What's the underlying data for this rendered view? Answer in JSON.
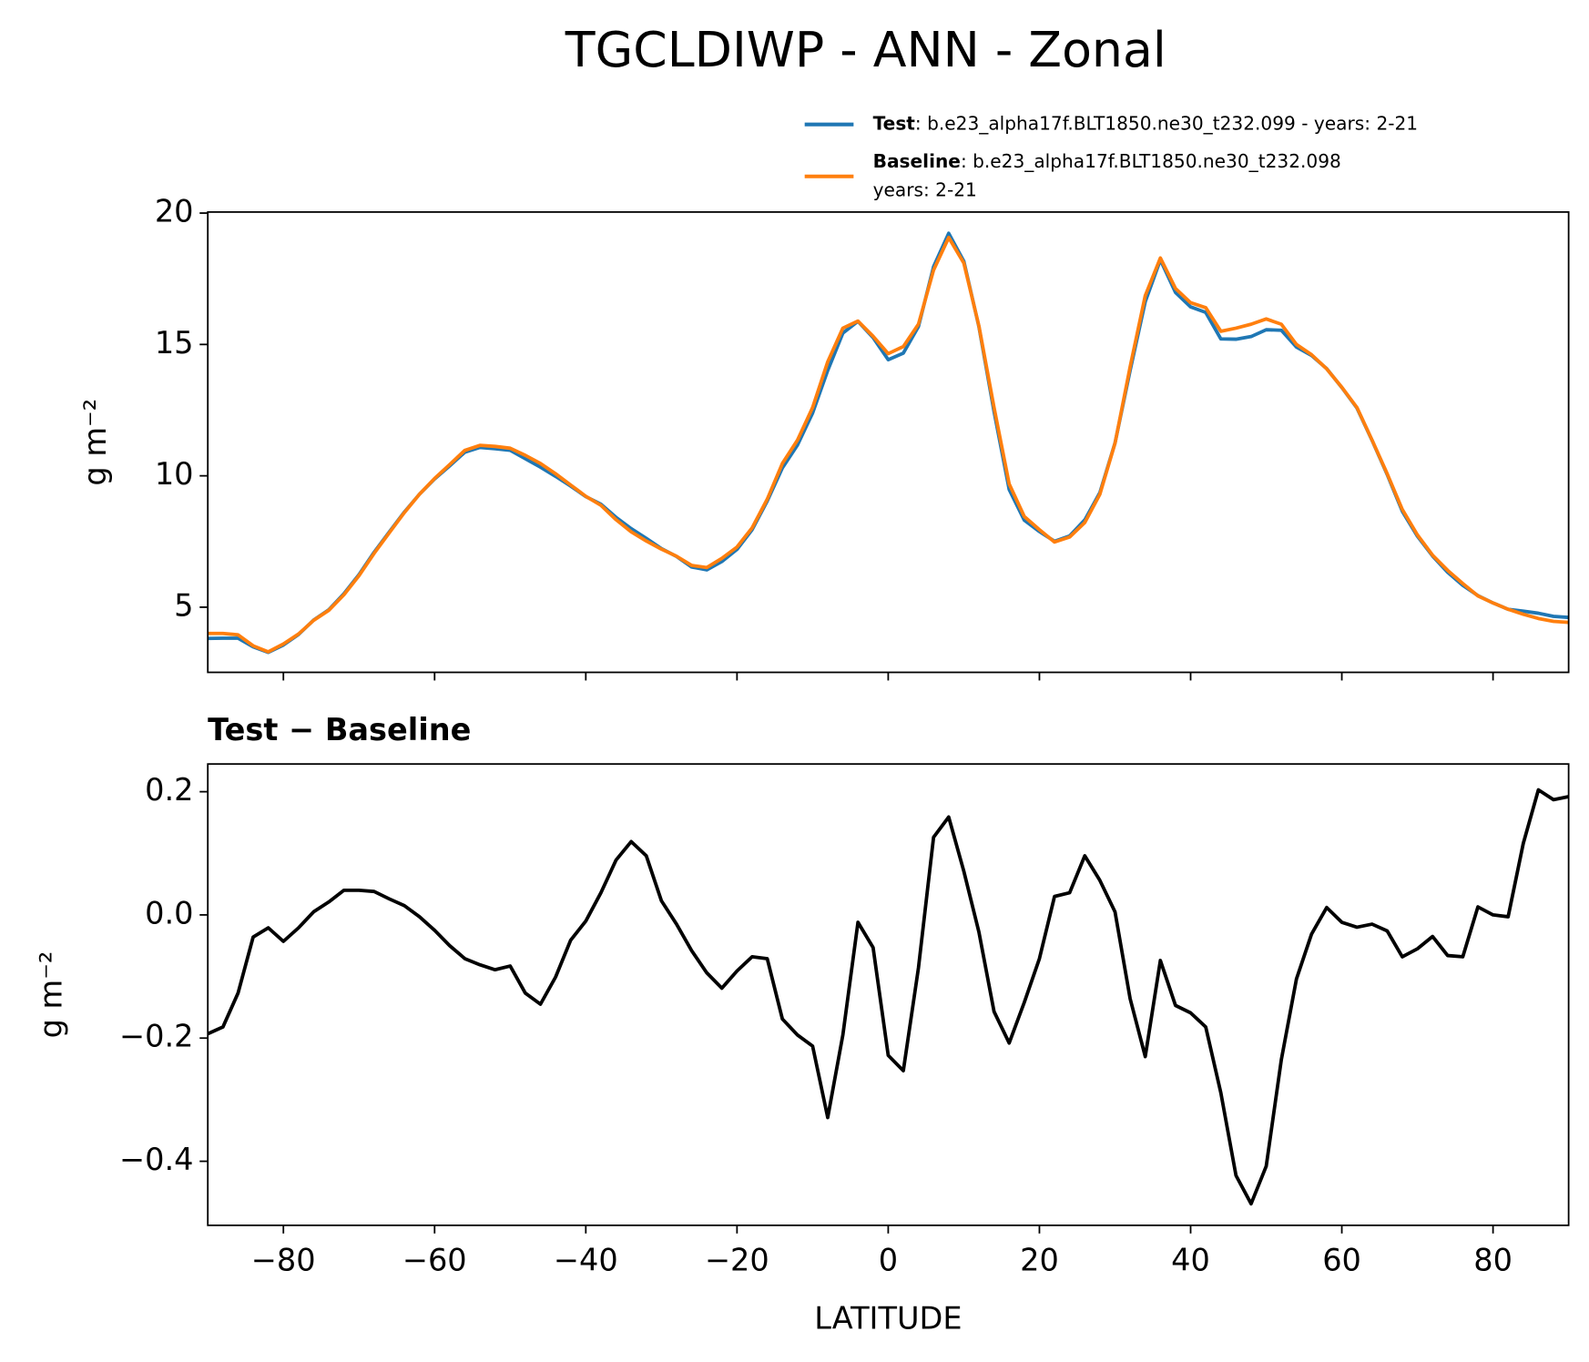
{
  "title": "TGCLDIWP - ANN - Zonal",
  "chart_data": [
    {
      "type": "line",
      "ylabel": "g m⁻²",
      "x": [
        -90,
        -88,
        -86,
        -84,
        -82,
        -80,
        -78,
        -76,
        -74,
        -72,
        -70,
        -68,
        -66,
        -64,
        -62,
        -60,
        -58,
        -56,
        -54,
        -52,
        -50,
        -48,
        -46,
        -44,
        -42,
        -40,
        -38,
        -36,
        -34,
        -32,
        -30,
        -28,
        -26,
        -24,
        -22,
        -20,
        -18,
        -16,
        -14,
        -12,
        -10,
        -8,
        -6,
        -4,
        -2,
        0,
        2,
        4,
        6,
        8,
        10,
        12,
        14,
        16,
        18,
        20,
        22,
        24,
        26,
        28,
        30,
        32,
        34,
        36,
        38,
        40,
        42,
        44,
        46,
        48,
        50,
        52,
        54,
        56,
        58,
        60,
        62,
        64,
        66,
        68,
        70,
        72,
        74,
        76,
        78,
        80,
        82,
        84,
        86,
        88,
        90
      ],
      "series": [
        {
          "name": "Test",
          "legend_text": [
            ": b.e23_alpha17f.BLT1850.ne30_t232.099 - years: 2-21"
          ],
          "color": "#1f77b4",
          "values": [
            3.81,
            3.82,
            3.82,
            3.49,
            3.28,
            3.56,
            3.96,
            4.51,
            4.9,
            5.51,
            6.24,
            7.09,
            7.86,
            8.62,
            9.3,
            9.88,
            10.38,
            10.9,
            11.08,
            11.03,
            10.97,
            10.65,
            10.33,
            9.98,
            9.61,
            9.21,
            8.92,
            8.42,
            7.99,
            7.62,
            7.23,
            6.93,
            6.53,
            6.42,
            6.74,
            7.2,
            7.95,
            9.04,
            10.3,
            11.17,
            12.39,
            14.01,
            15.43,
            15.88,
            15.26,
            14.42,
            14.67,
            15.68,
            17.96,
            19.23,
            18.17,
            15.67,
            12.44,
            9.48,
            8.31,
            7.88,
            7.51,
            7.71,
            8.32,
            9.36,
            11.25,
            14.01,
            16.63,
            18.22,
            16.98,
            16.43,
            16.22,
            15.21,
            15.2,
            15.3,
            15.56,
            15.54,
            14.9,
            14.58,
            14.08,
            13.36,
            12.58,
            11.35,
            10.05,
            8.65,
            7.7,
            6.95,
            6.33,
            5.83,
            5.44,
            5.16,
            4.92,
            4.85,
            4.77,
            4.65,
            4.61
          ]
        },
        {
          "name": "Baseline",
          "legend_text": [
            ": b.e23_alpha17f.BLT1850.ne30_t232.098",
            "years: 2-21"
          ],
          "color": "#ff7f0e",
          "values": [
            4.0,
            4.0,
            3.95,
            3.53,
            3.3,
            3.6,
            3.98,
            4.5,
            4.88,
            5.47,
            6.2,
            7.05,
            7.83,
            8.6,
            9.3,
            9.9,
            10.43,
            10.97,
            11.16,
            11.12,
            11.05,
            10.78,
            10.47,
            10.08,
            9.65,
            9.22,
            8.88,
            8.33,
            7.87,
            7.52,
            7.21,
            6.94,
            6.59,
            6.51,
            6.86,
            7.29,
            8.02,
            9.11,
            10.47,
            11.36,
            12.6,
            14.34,
            15.62,
            15.89,
            15.31,
            14.65,
            14.92,
            15.77,
            17.83,
            19.07,
            18.1,
            15.7,
            12.6,
            9.69,
            8.45,
            7.95,
            7.48,
            7.67,
            8.22,
            9.3,
            11.24,
            14.15,
            16.86,
            18.29,
            17.13,
            16.59,
            16.4,
            15.5,
            15.62,
            15.77,
            15.97,
            15.77,
            15.0,
            14.61,
            14.07,
            13.37,
            12.6,
            11.36,
            10.08,
            8.72,
            7.75,
            6.98,
            6.4,
            5.9,
            5.43,
            5.16,
            4.92,
            4.73,
            4.57,
            4.46,
            4.42
          ]
        }
      ],
      "xlim": [
        -90,
        90
      ],
      "xticks": [
        -80,
        -60,
        -40,
        -20,
        0,
        20,
        40,
        60,
        80
      ],
      "ylim": [
        2.52,
        20.04
      ],
      "yticks": [
        5,
        10,
        15,
        20
      ]
    },
    {
      "type": "line",
      "title": "Test − Baseline",
      "xlabel": "LATITUDE",
      "ylabel": "g m⁻²",
      "x": [
        -90,
        -88,
        -86,
        -84,
        -82,
        -80,
        -78,
        -76,
        -74,
        -72,
        -70,
        -68,
        -66,
        -64,
        -62,
        -60,
        -58,
        -56,
        -54,
        -52,
        -50,
        -48,
        -46,
        -44,
        -42,
        -40,
        -38,
        -36,
        -34,
        -32,
        -30,
        -28,
        -26,
        -24,
        -22,
        -20,
        -18,
        -16,
        -14,
        -12,
        -10,
        -8,
        -6,
        -4,
        -2,
        0,
        2,
        4,
        6,
        8,
        10,
        12,
        14,
        16,
        18,
        20,
        22,
        24,
        26,
        28,
        30,
        32,
        34,
        36,
        38,
        40,
        42,
        44,
        46,
        48,
        50,
        52,
        54,
        56,
        58,
        60,
        62,
        64,
        66,
        68,
        70,
        72,
        74,
        76,
        78,
        80,
        82,
        84,
        86,
        88,
        90
      ],
      "series": [
        {
          "color": "#000000",
          "values": [
            -0.193,
            -0.182,
            -0.127,
            -0.036,
            -0.021,
            -0.043,
            -0.021,
            0.005,
            0.021,
            0.04,
            0.04,
            0.038,
            0.026,
            0.015,
            -0.003,
            -0.025,
            -0.05,
            -0.071,
            -0.081,
            -0.089,
            -0.083,
            -0.127,
            -0.145,
            -0.101,
            -0.041,
            -0.01,
            0.036,
            0.089,
            0.119,
            0.096,
            0.023,
            -0.015,
            -0.058,
            -0.094,
            -0.119,
            -0.091,
            -0.068,
            -0.071,
            -0.169,
            -0.195,
            -0.213,
            -0.329,
            -0.195,
            -0.012,
            -0.053,
            -0.228,
            -0.253,
            -0.086,
            0.126,
            0.159,
            0.071,
            -0.028,
            -0.157,
            -0.208,
            -0.142,
            -0.071,
            0.03,
            0.036,
            0.096,
            0.056,
            0.005,
            -0.136,
            -0.23,
            -0.074,
            -0.147,
            -0.159,
            -0.182,
            -0.289,
            -0.423,
            -0.469,
            -0.408,
            -0.235,
            -0.104,
            -0.031,
            0.012,
            -0.012,
            -0.02,
            -0.015,
            -0.026,
            -0.068,
            -0.055,
            -0.035,
            -0.066,
            -0.068,
            0.013,
            0,
            -0.003,
            0.116,
            0.203,
            0.187,
            0.192
          ]
        }
      ],
      "xlim": [
        -90,
        90
      ],
      "xticks": [
        {
          "value": -80,
          "label": "−80"
        },
        {
          "value": -60,
          "label": "−60"
        },
        {
          "value": -40,
          "label": "−40"
        },
        {
          "value": -20,
          "label": "−20"
        },
        0,
        20,
        40,
        60,
        80
      ],
      "ylim": [
        -0.504,
        0.245
      ],
      "yticks": [
        {
          "value": -0.4,
          "label": "−0.4"
        },
        {
          "value": -0.2,
          "label": "−0.2"
        },
        {
          "value": 0,
          "label": "0.0"
        },
        0.2
      ]
    }
  ]
}
